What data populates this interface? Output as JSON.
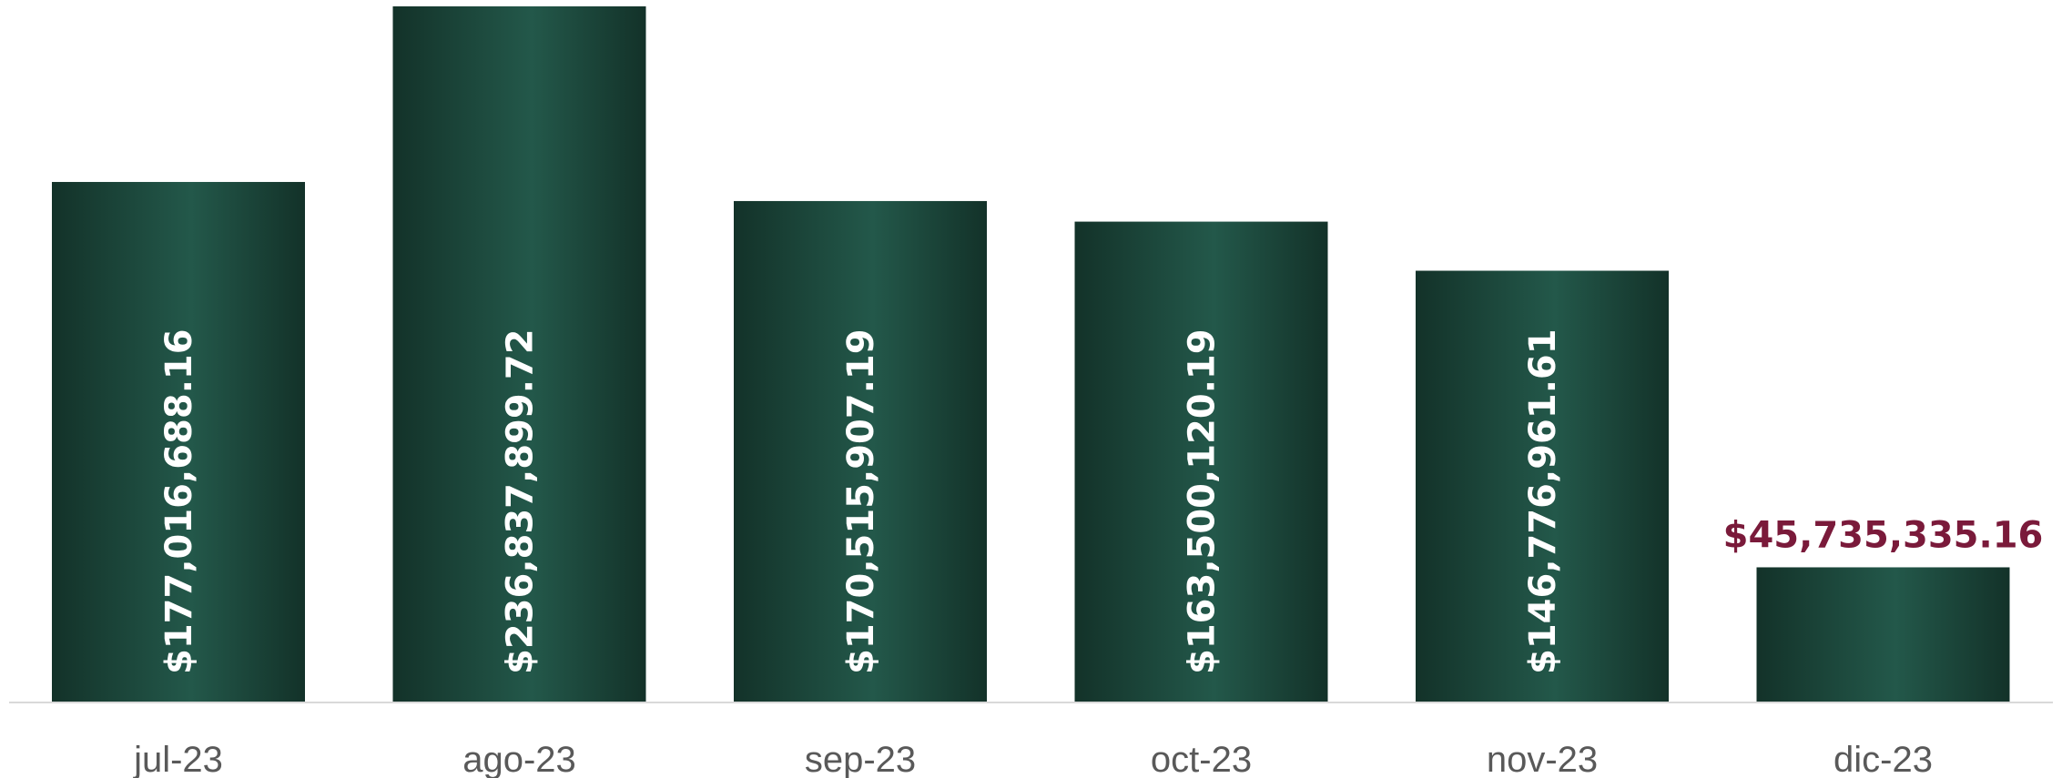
{
  "chart_data": {
    "type": "bar",
    "title": "",
    "xlabel": "",
    "ylabel": "",
    "categories": [
      "jul-23",
      "ago-23",
      "sep-23",
      "oct-23",
      "nov-23",
      "dic-23"
    ],
    "values": [
      177016688.16,
      236837899.72,
      170515907.19,
      163500120.19,
      146776961.61,
      45735335.16
    ],
    "data_labels": [
      "$177,016,688.16",
      "$236,837,899.72",
      "$170,515,907.19",
      "$163,500,120.19",
      "$146,776,961.61",
      "$45,735,335.16"
    ],
    "ylim": [
      0,
      236837899.72
    ],
    "grid": false,
    "legend": "none",
    "colors": {
      "bar_dark": "#133229",
      "bar_light": "#23584a",
      "label_inside": "#ffffff",
      "label_outside": "#7a1a3a",
      "axis_line": "#d9d9d9",
      "tick_text": "#595959"
    }
  }
}
